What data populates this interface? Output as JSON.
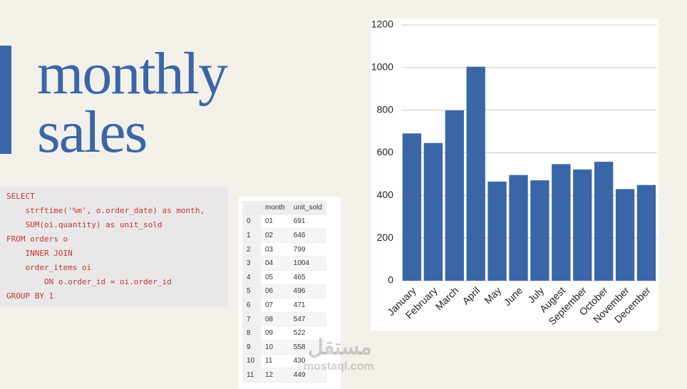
{
  "title": {
    "line1": "monthly",
    "line2": "sales"
  },
  "code": {
    "lines": [
      "SELECT",
      "    strftime('%m', o.order_date) as month,",
      "    SUM(oi.quantity) as unit_sold",
      "FROM orders o",
      "    INNER JOIN",
      "    order_items oi",
      "        ON o.order_id = oi.order_id",
      "GROUP BY 1"
    ]
  },
  "table": {
    "columns": [
      "month",
      "unit_sold"
    ],
    "rows": [
      [
        0,
        "01",
        691
      ],
      [
        1,
        "02",
        646
      ],
      [
        2,
        "03",
        799
      ],
      [
        3,
        "04",
        1004
      ],
      [
        4,
        "05",
        465
      ],
      [
        5,
        "06",
        496
      ],
      [
        6,
        "07",
        471
      ],
      [
        7,
        "08",
        547
      ],
      [
        8,
        "09",
        522
      ],
      [
        9,
        "10",
        558
      ],
      [
        10,
        "11",
        430
      ],
      [
        11,
        "12",
        449
      ]
    ]
  },
  "watermark": {
    "arabic": "مستقل",
    "latin": "mostaql.com"
  },
  "chart_data": {
    "type": "bar",
    "categories": [
      "January",
      "February",
      "March",
      "April",
      "May",
      "June",
      "July",
      "Augest",
      "September",
      "October",
      "November",
      "December"
    ],
    "values": [
      691,
      646,
      799,
      1004,
      465,
      496,
      471,
      547,
      522,
      558,
      430,
      449
    ],
    "color": "#3a66a7",
    "ylim": [
      0,
      1200
    ],
    "yticks": [
      0,
      200,
      400,
      600,
      800,
      1000,
      1200
    ],
    "grid": true
  }
}
